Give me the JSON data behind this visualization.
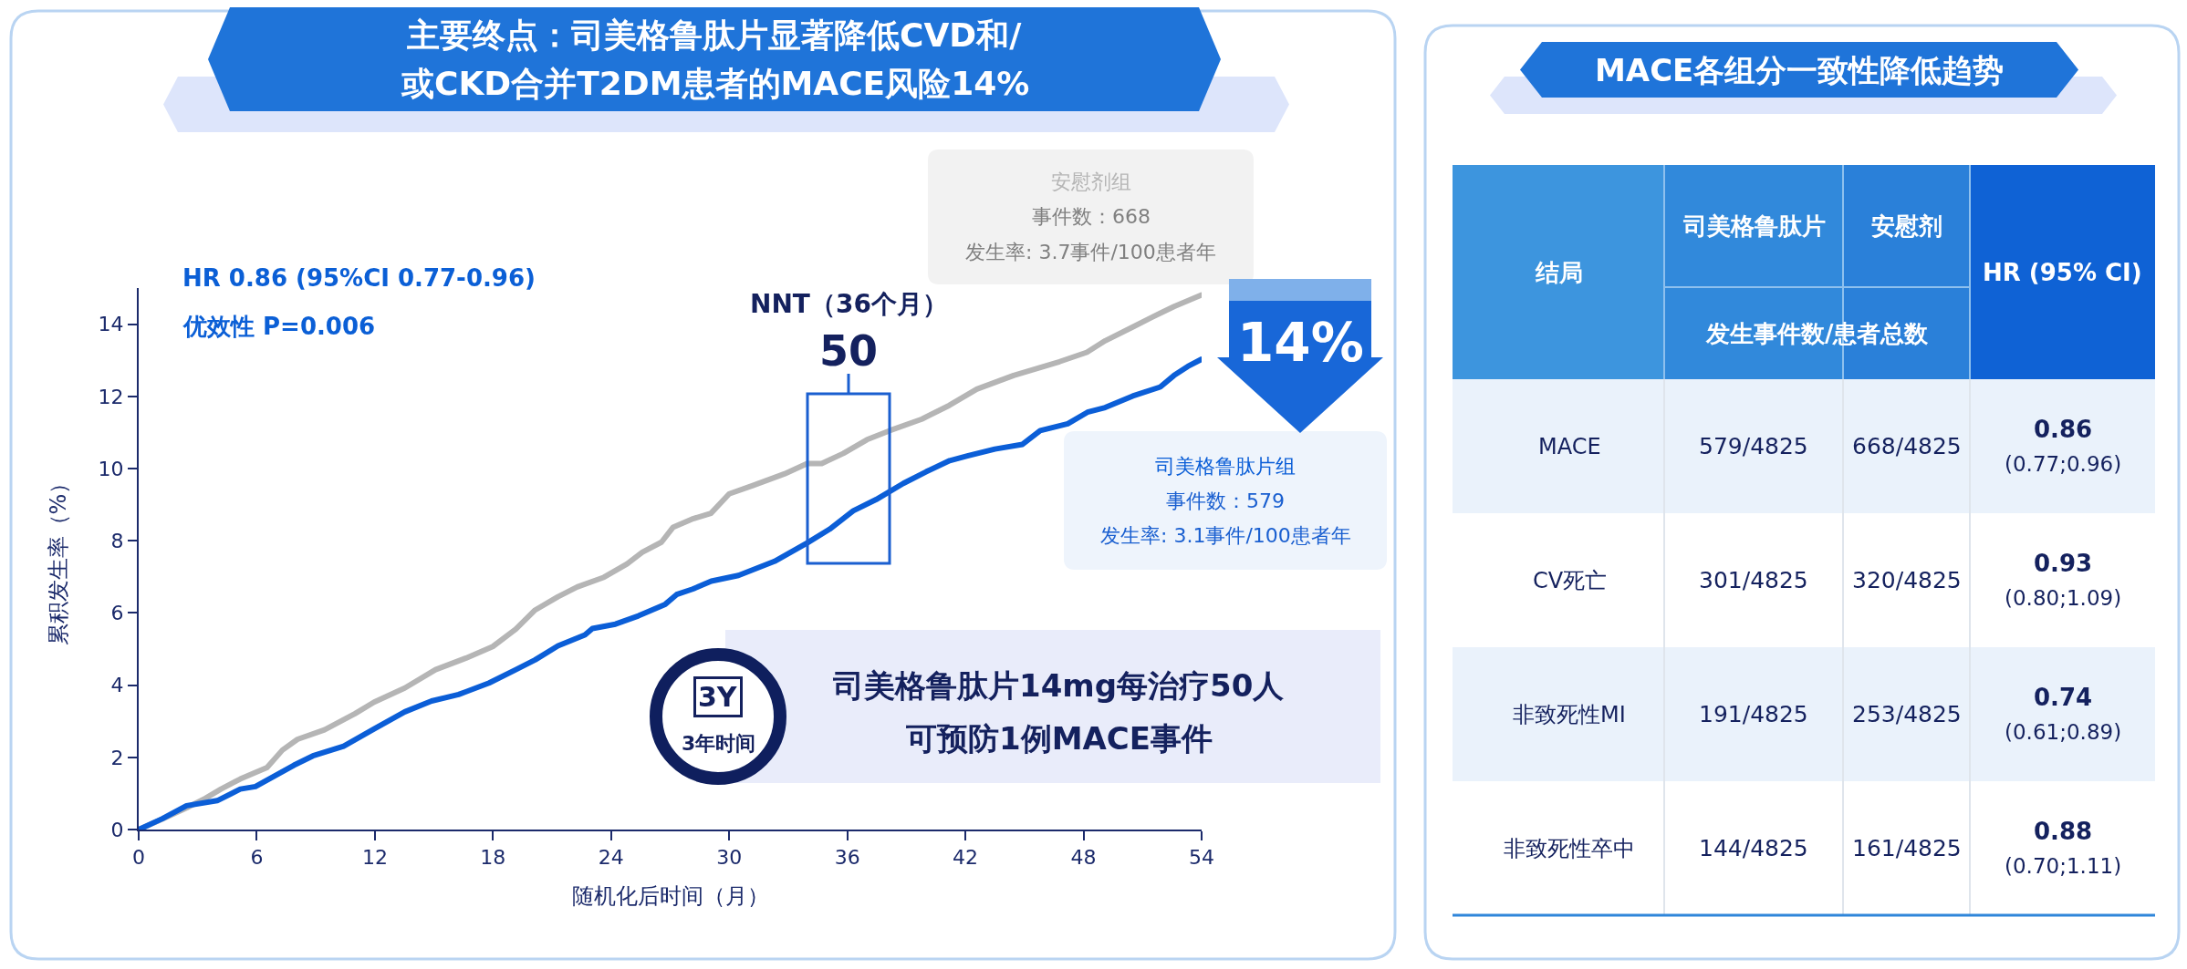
{
  "chart_data": [
    {
      "type": "line",
      "title": "主要终点：司美格鲁肽片显著降低CVD和/\n或CKD合并T2DM患者的MACE风险14%",
      "xlabel": "随机化后时间（月）",
      "ylabel": "累积发生率（%）",
      "xlim": [
        0,
        54
      ],
      "ylim": [
        0,
        15
      ],
      "xticks": [
        0,
        6,
        12,
        18,
        24,
        30,
        36,
        42,
        48,
        54
      ],
      "yticks": [
        0,
        2,
        4,
        6,
        8,
        10,
        12,
        14
      ],
      "series": [
        {
          "name": "安慰剂组",
          "color": "#b5b5b5",
          "x": [
            0,
            1.2,
            2.43,
            3.4,
            4.18,
            5.16,
            6.52,
            7.3,
            8.07,
            9.44,
            10.99,
            11.96,
            13.52,
            15.08,
            16.63,
            17.99,
            19.16,
            20.14,
            21.3,
            22.28,
            23.64,
            24.81,
            25.58,
            26.56,
            27.14,
            28.11,
            29.07,
            30.0,
            31.2,
            32.8,
            33.96,
            34.7,
            35.8,
            37.0,
            38.15,
            39.79,
            41.18,
            42.58,
            44.45,
            46.78,
            48.17,
            49.1,
            50.5,
            51.4,
            52.6,
            54.0
          ],
          "values": [
            0,
            0.29,
            0.6,
            0.87,
            1.12,
            1.4,
            1.72,
            2.2,
            2.5,
            2.76,
            3.21,
            3.53,
            3.92,
            4.43,
            4.75,
            5.07,
            5.55,
            6.08,
            6.45,
            6.72,
            6.99,
            7.36,
            7.68,
            7.96,
            8.37,
            8.6,
            8.76,
            9.3,
            9.53,
            9.85,
            10.14,
            10.14,
            10.42,
            10.8,
            11.05,
            11.37,
            11.75,
            12.2,
            12.58,
            12.96,
            13.22,
            13.54,
            13.92,
            14.17,
            14.49,
            14.81
          ]
        },
        {
          "name": "司美格鲁肽片组",
          "color": "#0b5ed7",
          "x": [
            0,
            1.2,
            2.43,
            3.99,
            5.16,
            5.93,
            7.88,
            8.85,
            10.41,
            11.96,
            13.52,
            14.88,
            16.25,
            17.8,
            19.16,
            20.14,
            21.3,
            22.67,
            23.05,
            24.22,
            25.39,
            26.75,
            27.33,
            28.14,
            29.09,
            30.47,
            32.3,
            33.96,
            35.1,
            36.3,
            37.46,
            38.85,
            40.0,
            41.2,
            42.1,
            43.5,
            44.9,
            45.8,
            47.2,
            48.2,
            49.1,
            50.5,
            51.9,
            52.6,
            53.3,
            54.0
          ],
          "values": [
            0,
            0.3,
            0.66,
            0.8,
            1.12,
            1.19,
            1.78,
            2.04,
            2.31,
            2.79,
            3.26,
            3.56,
            3.74,
            4.06,
            4.43,
            4.7,
            5.09,
            5.39,
            5.57,
            5.69,
            5.92,
            6.24,
            6.51,
            6.66,
            6.88,
            7.04,
            7.43,
            7.94,
            8.32,
            8.83,
            9.14,
            9.59,
            9.91,
            10.22,
            10.35,
            10.54,
            10.67,
            11.05,
            11.24,
            11.56,
            11.69,
            12.01,
            12.26,
            12.58,
            12.83,
            13.03
          ]
        }
      ],
      "annotations": [
        "事件数：668\n发生率: 3.7事件/100患者年",
        "事件数：579\n发生率: 3.1事件/100患者年",
        "HR 0.86 (95%CI 0.77-0.96)\n优效性 P=0.006",
        "NNT（36个月）\n50",
        "14%",
        "3Y",
        "3年时间",
        "司美格鲁肽片14mg每治疗50人",
        "可预防1例MACE事件"
      ]
    },
    {
      "type": "other",
      "title": "MACE各组分一致性降低趋势",
      "categories": [
        "结局",
        "司美格鲁肽片",
        "安慰剂",
        "HR (95% CI)"
      ],
      "y_categories": [
        "MACE",
        "CV死亡",
        "非致死性MI",
        "非致死性卒中"
      ],
      "cell_labels": [
        [
          "579/4825",
          "668/4825",
          "0.86\n(0.77;0.96)"
        ],
        [
          "301/4825",
          "320/4825",
          "0.93\n(0.80;1.09)"
        ],
        [
          "191/4825",
          "253/4825",
          "0.74\n(0.61;0.89)"
        ],
        [
          "144/4825",
          "161/4825",
          "0.88\n(0.70;1.11)"
        ]
      ],
      "annotations": [
        "发生事件数/患者总数"
      ]
    }
  ]
}
